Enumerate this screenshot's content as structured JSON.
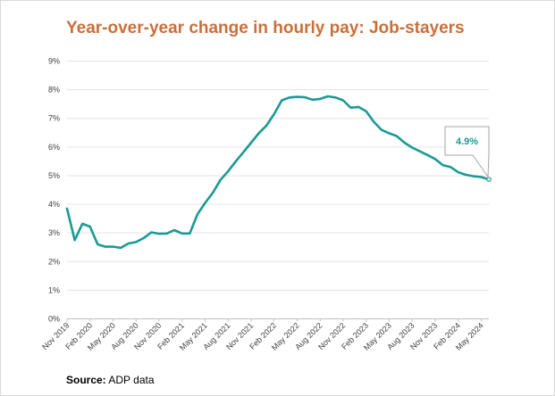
{
  "chart_data": {
    "type": "line",
    "title": "Year-over-year change in hourly pay: Job-stayers",
    "source_label": "Source:",
    "source_value": "ADP data",
    "callout": "4.9%",
    "color": "#1a9a96",
    "ylim": [
      0,
      9
    ],
    "yticks": [
      "0%",
      "1%",
      "2%",
      "3%",
      "4%",
      "5%",
      "6%",
      "7%",
      "8%",
      "9%"
    ],
    "xticks": [
      "Nov 2019",
      "Feb 2020",
      "May 2020",
      "Aug 2020",
      "Nov 2020",
      "Feb 2021",
      "May 2021",
      "Aug 2021",
      "Nov 2021",
      "Feb 2022",
      "May 2022",
      "Aug 2022",
      "Nov 2022",
      "Feb 2023",
      "May 2023",
      "Aug 2023",
      "Nov 2023",
      "Feb 2024",
      "May 2024"
    ],
    "xtick_month_index": [
      0,
      3,
      6,
      9,
      12,
      15,
      18,
      21,
      24,
      27,
      30,
      33,
      36,
      39,
      42,
      45,
      48,
      51,
      54
    ],
    "grid": true,
    "series": [
      {
        "x_start": "Nov 2019",
        "x_end": "Jun 2024",
        "values": [
          3.85,
          2.75,
          3.32,
          3.22,
          2.6,
          2.52,
          2.52,
          2.48,
          2.63,
          2.68,
          2.82,
          3.02,
          2.97,
          2.98,
          3.1,
          2.98,
          2.98,
          3.65,
          4.05,
          4.4,
          4.85,
          5.15,
          5.5,
          5.82,
          6.15,
          6.48,
          6.75,
          7.15,
          7.63,
          7.73,
          7.75,
          7.74,
          7.65,
          7.68,
          7.77,
          7.73,
          7.63,
          7.37,
          7.4,
          7.25,
          6.88,
          6.6,
          6.48,
          6.38,
          6.15,
          5.98,
          5.85,
          5.72,
          5.58,
          5.37,
          5.3,
          5.12,
          5.03,
          4.98,
          4.95,
          4.87
        ]
      }
    ]
  }
}
